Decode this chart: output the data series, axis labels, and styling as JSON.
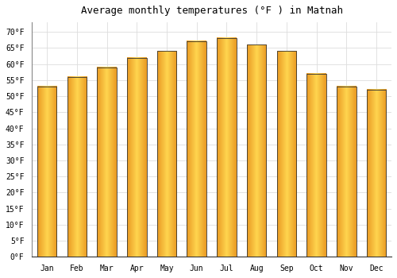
{
  "title": "Average monthly temperatures (°F ) in Matnah",
  "months": [
    "Jan",
    "Feb",
    "Mar",
    "Apr",
    "May",
    "Jun",
    "Jul",
    "Aug",
    "Sep",
    "Oct",
    "Nov",
    "Dec"
  ],
  "values": [
    53,
    56,
    59,
    62,
    64,
    67,
    68,
    66,
    64,
    57,
    53,
    52
  ],
  "bar_color_center": "#FFD54F",
  "bar_color_edge": "#F5A623",
  "bar_color_dark_edge": "#E08010",
  "edge_color": "#333333",
  "background_color": "#FFFFFF",
  "grid_color": "#DDDDDD",
  "title_fontsize": 9,
  "tick_fontsize": 7,
  "ylim_min": 0,
  "ylim_max": 73,
  "ytick_step": 5
}
